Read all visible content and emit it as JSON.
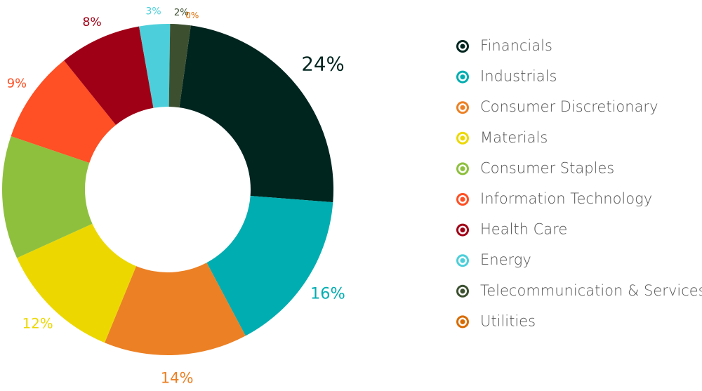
{
  "chart_data": {
    "type": "donut",
    "categories": [
      "Financials",
      "Industrials",
      "Consumer Discretionary",
      "Materials",
      "Consumer Staples",
      "Information Technology",
      "Health Care",
      "Energy",
      "Telecommunication & Services",
      "Utilities"
    ],
    "values": [
      24,
      16,
      14,
      12,
      12,
      9,
      8,
      3,
      2,
      0
    ],
    "value_labels": [
      "24%",
      "16%",
      "14%",
      "12%",
      null,
      "9%",
      "8%",
      "3%",
      "2%",
      "0%"
    ],
    "colors": [
      "#00251f",
      "#00adb0",
      "#ec8024",
      "#ecd800",
      "#8ec03e",
      "#ff4f24",
      "#a00016",
      "#4ccfda",
      "#3c5030",
      "#d86b00"
    ],
    "legend": "right"
  }
}
